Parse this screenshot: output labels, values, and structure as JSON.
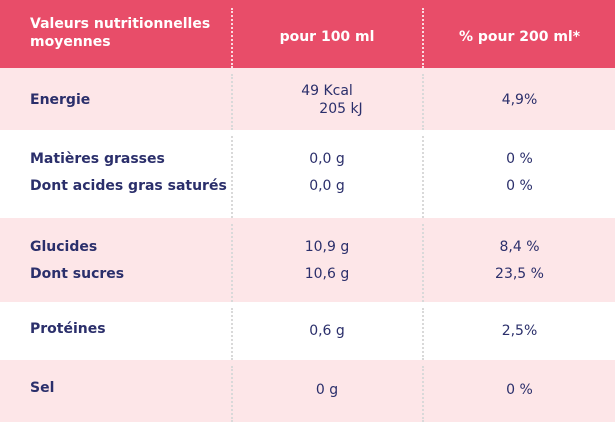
{
  "header": {
    "col1": "Valeurs nutritionnelles moyennes",
    "col2": "pour 100 ml",
    "col3": "% pour 200 ml*"
  },
  "rows": [
    {
      "label": "Energie",
      "per100_line1": "49 Kcal",
      "per100_line2": "205 kJ",
      "pct": "4,9%"
    },
    {
      "label": "Matières grasses",
      "per100": "0,0 g",
      "pct": "0 %"
    },
    {
      "label": "Dont acides gras saturés",
      "per100": "0,0 g",
      "pct": "0 %"
    },
    {
      "label": "Glucides",
      "per100": "10,9 g",
      "pct": "8,4 %"
    },
    {
      "label": "Dont sucres",
      "per100": "10,6 g",
      "pct": "23,5 %"
    },
    {
      "label": "Protéines",
      "per100": "0,6 g",
      "pct": "2,5%"
    },
    {
      "label": "Sel",
      "per100": "0 g",
      "pct": "0 %"
    }
  ],
  "colors": {
    "header_bg": "#e84d69",
    "row_pink": "#fde6e8",
    "text": "#2b2f6b"
  }
}
